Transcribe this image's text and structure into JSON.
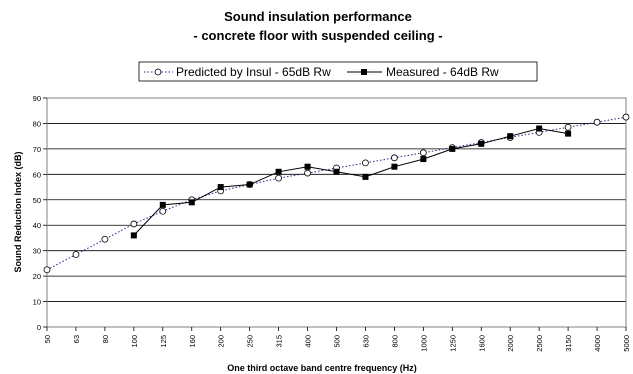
{
  "chart_data": {
    "type": "line",
    "title": "Sound insulation performance",
    "subtitle": "- concrete floor with suspended ceiling -",
    "xlabel": "One third octave band centre frequency (Hz)",
    "ylabel": "Sound Reduction Index (dB)",
    "ylim": [
      0,
      90
    ],
    "yticks": [
      0,
      10,
      20,
      30,
      40,
      50,
      60,
      70,
      80,
      90
    ],
    "grid": "horizontal",
    "legend_position": "top-center",
    "categories": [
      "50",
      "63",
      "80",
      "100",
      "125",
      "160",
      "200",
      "250",
      "315",
      "400",
      "500",
      "630",
      "800",
      "1000",
      "1250",
      "1600",
      "2000",
      "2500",
      "3150",
      "4000",
      "5000"
    ],
    "series": [
      {
        "name": "Predicted by Insul - 65dB Rw",
        "color": "#1f2a8a",
        "line": "dotted",
        "marker": "open-circle",
        "values": [
          22.5,
          28.5,
          34.5,
          40.5,
          45.5,
          50,
          53.5,
          56,
          58.5,
          60.5,
          62.5,
          64.5,
          66.5,
          68.5,
          70.5,
          72.5,
          74.5,
          76.5,
          78.5,
          80.5,
          82.5
        ]
      },
      {
        "name": "Measured - 64dB Rw",
        "color": "#000000",
        "line": "solid",
        "marker": "filled-square",
        "values": [
          null,
          null,
          null,
          36,
          48,
          49,
          55,
          56,
          61,
          63,
          61,
          59,
          63,
          66,
          70,
          72,
          75,
          78,
          76,
          null,
          null
        ]
      }
    ]
  }
}
